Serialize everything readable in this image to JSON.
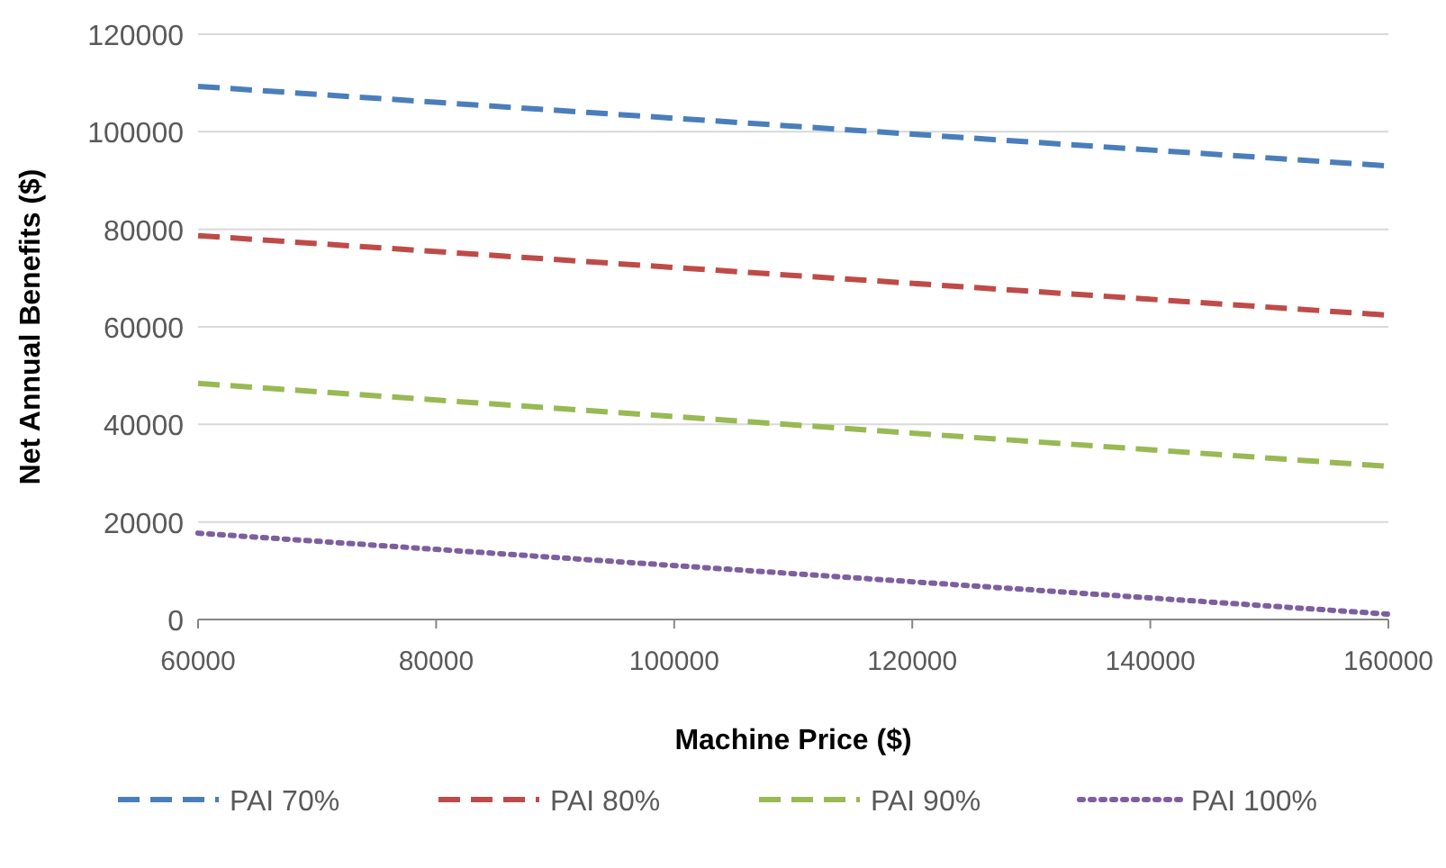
{
  "chart_data": {
    "type": "line",
    "xlabel": "Machine Price ($)",
    "ylabel": "Net Annual Benefits ($)",
    "x": [
      60000,
      160000
    ],
    "series": [
      {
        "name": "PAI 70%",
        "color": "#4a7ebb",
        "values": [
          109300,
          93000
        ],
        "line_style": "dashed"
      },
      {
        "name": "PAI 80%",
        "color": "#be4b48",
        "values": [
          78700,
          62400
        ],
        "line_style": "dashed"
      },
      {
        "name": "PAI 90%",
        "color": "#98b954",
        "values": [
          48400,
          31400
        ],
        "line_style": "dashed"
      },
      {
        "name": "PAI 100%",
        "color": "#7d5fa0",
        "values": [
          17700,
          1100
        ],
        "line_style": "dotted"
      }
    ],
    "xlim": [
      60000,
      160000
    ],
    "xticks": [
      60000,
      80000,
      100000,
      120000,
      140000,
      160000
    ],
    "ylim": [
      0,
      120000
    ],
    "yticks": [
      0,
      20000,
      40000,
      60000,
      80000,
      100000,
      120000
    ],
    "grid": "y",
    "legend": "bottom",
    "marker": "none"
  }
}
